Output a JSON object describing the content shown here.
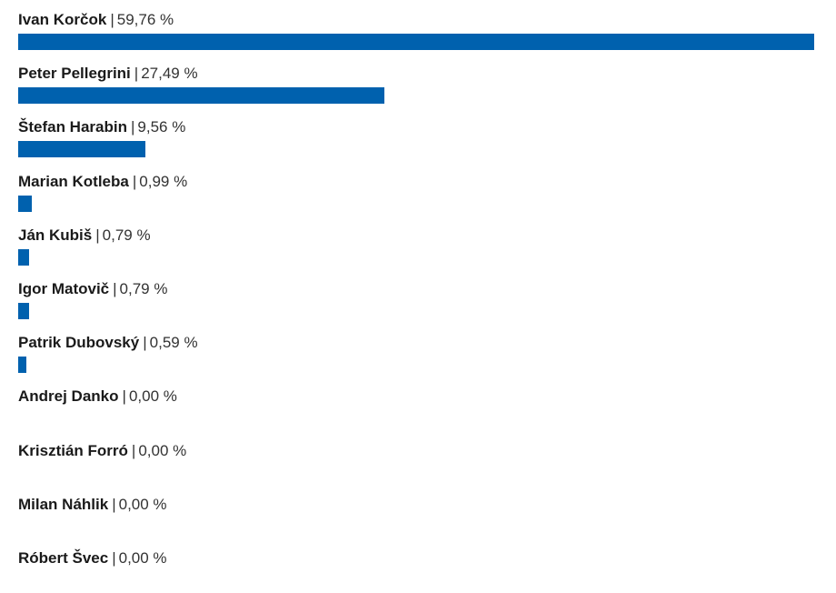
{
  "chart_data": {
    "type": "bar",
    "orientation": "horizontal",
    "bar_color": "#0061ae",
    "value_suffix": " %",
    "categories": [
      "Ivan Korčok",
      "Peter Pellegrini",
      "Štefan Harabin",
      "Marian Kotleba",
      "Ján Kubiš",
      "Igor Matovič",
      "Patrik Dubovský",
      "Andrej Danko",
      "Krisztián Forró",
      "Milan Náhlik",
      "Róbert Švec"
    ],
    "values": [
      59.76,
      27.49,
      9.56,
      0.99,
      0.79,
      0.79,
      0.59,
      0.0,
      0.0,
      0.0,
      0.0
    ],
    "value_labels": [
      "59,76 %",
      "27,49 %",
      "9,56 %",
      "0,99 %",
      "0,79 %",
      "0,79 %",
      "0,59 %",
      "0,00 %",
      "0,00 %",
      "0,00 %",
      "0,00 %"
    ],
    "separator": "|",
    "title": "",
    "xlabel": "",
    "ylabel": ""
  }
}
